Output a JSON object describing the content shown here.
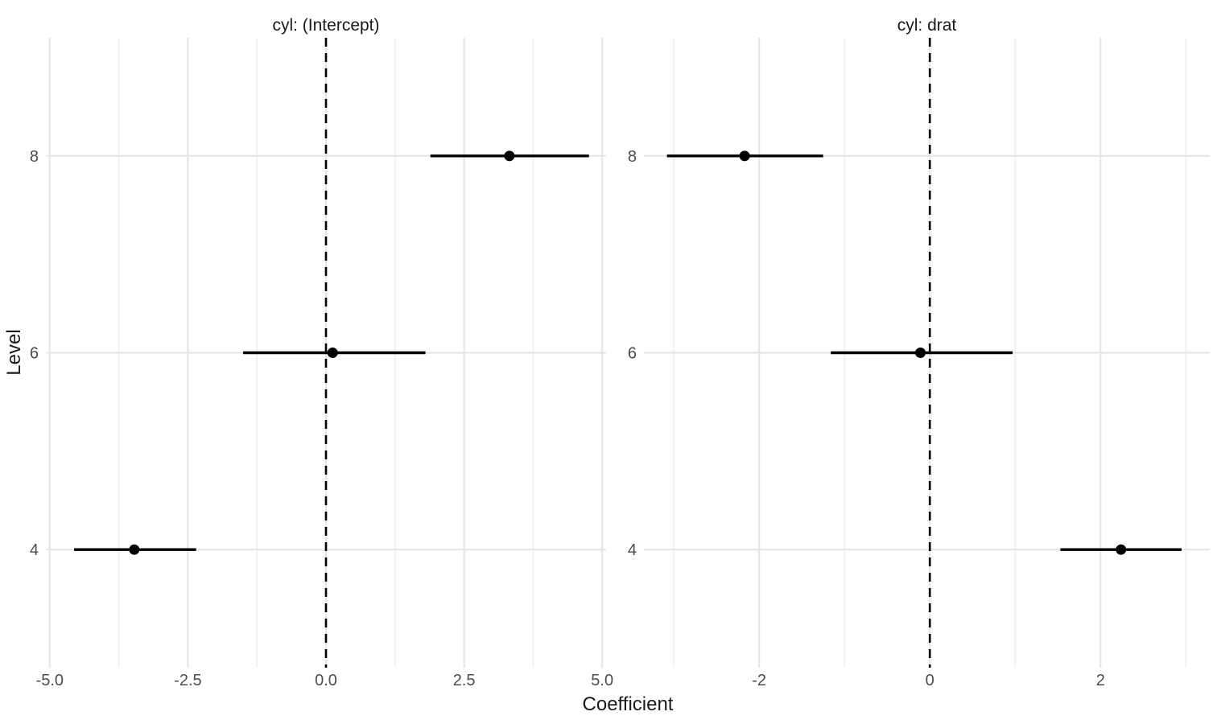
{
  "chart_data": {
    "type": "pointrange",
    "title": "",
    "xlabel": "Coefficient",
    "ylabel": "Level",
    "categories": [
      "4",
      "6",
      "8"
    ],
    "legend": "none",
    "grid": true,
    "zero_line": 0,
    "facets": [
      {
        "title": "cyl: (Intercept)",
        "xlim": [
          -5.07,
          5.07
        ],
        "xticks": [
          -5.0,
          -2.5,
          0.0,
          2.5,
          5.0
        ],
        "xtick_labels": [
          "-5.0",
          "-2.5",
          "0.0",
          "2.5",
          "5.0"
        ],
        "xminor": [
          -3.75,
          -1.25,
          1.25,
          3.75
        ],
        "points": [
          {
            "level": "4",
            "estimate": -3.47,
            "ci_low": -4.56,
            "ci_high": -2.35
          },
          {
            "level": "6",
            "estimate": 0.12,
            "ci_low": -1.5,
            "ci_high": 1.8
          },
          {
            "level": "8",
            "estimate": 3.32,
            "ci_low": 1.89,
            "ci_high": 4.76
          }
        ]
      },
      {
        "title": "cyl: drat",
        "xlim": [
          -3.35,
          3.28
        ],
        "xticks": [
          -2,
          0,
          2
        ],
        "xtick_labels": [
          "-2",
          "0",
          "2"
        ],
        "xminor": [
          -3,
          -1,
          1,
          3
        ],
        "points": [
          {
            "level": "4",
            "estimate": 2.24,
            "ci_low": 1.53,
            "ci_high": 2.95
          },
          {
            "level": "6",
            "estimate": -0.11,
            "ci_low": -1.16,
            "ci_high": 0.97
          },
          {
            "level": "8",
            "estimate": -2.17,
            "ci_low": -3.08,
            "ci_high": -1.25
          }
        ]
      }
    ],
    "colors": {
      "point": "#000000",
      "ci_line": "#000000",
      "zero_line": "#000000",
      "gridline_major": "#e6e6e6",
      "gridline_minor": "#eeeeee",
      "tick_label": "#4d4d4d",
      "title_text": "#1a1a1a",
      "background": "#ffffff"
    }
  }
}
